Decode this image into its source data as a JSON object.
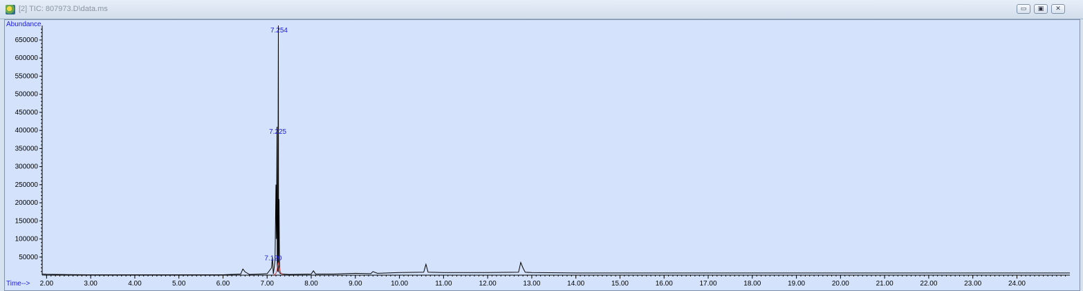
{
  "window": {
    "title": "[2] TIC: 807973.D\\data.ms",
    "icon": "chromatogram-app-icon",
    "buttons": {
      "minimize": "▭",
      "restore": "▣",
      "close": "✕"
    }
  },
  "chart_data": {
    "type": "line",
    "ylabel": "Abundance",
    "xlabel": "Time-->",
    "xlim": [
      1.9,
      25.2
    ],
    "ylim": [
      0,
      690000
    ],
    "y_ticks": [
      50000,
      100000,
      150000,
      200000,
      250000,
      300000,
      350000,
      400000,
      450000,
      500000,
      550000,
      600000,
      650000
    ],
    "x_ticks": [
      "2.00",
      "3.00",
      "4.00",
      "5.00",
      "6.00",
      "7.00",
      "8.00",
      "9.00",
      "10.00",
      "11.00",
      "12.00",
      "13.00",
      "14.00",
      "15.00",
      "16.00",
      "17.00",
      "18.00",
      "19.00",
      "20.00",
      "21.00",
      "22.00",
      "23.00",
      "24.00"
    ],
    "series": [
      {
        "color": "#000000",
        "x": [
          1.9,
          2.0,
          2.5,
          3.0,
          4.0,
          5.0,
          6.0,
          6.4,
          6.45,
          6.5,
          6.6,
          7.0,
          7.1,
          7.12,
          7.14,
          7.18,
          7.2,
          7.21,
          7.225,
          7.23,
          7.24,
          7.254,
          7.26,
          7.27,
          7.28,
          7.29,
          7.35,
          7.5,
          8.0,
          8.05,
          8.1,
          8.5,
          9.0,
          9.35,
          9.4,
          9.5,
          10.0,
          10.55,
          10.6,
          10.65,
          11.0,
          12.0,
          12.7,
          12.75,
          12.8,
          12.85,
          13.0,
          14.0,
          16.0,
          18.0,
          20.0,
          22.0,
          24.0,
          25.2
        ],
        "y": [
          3000,
          2500,
          1500,
          1000,
          1000,
          1000,
          1000,
          3000,
          17000,
          9000,
          2000,
          4000,
          20000,
          50000,
          3000,
          40000,
          250000,
          100000,
          410000,
          30000,
          10000,
          690000,
          8000,
          210000,
          40000,
          5000,
          3000,
          2000,
          3000,
          12000,
          3000,
          3000,
          5000,
          4000,
          10000,
          5000,
          7000,
          8000,
          30000,
          8000,
          7000,
          7000,
          8000,
          35000,
          20000,
          8000,
          7000,
          6000,
          6000,
          6000,
          6000,
          6000,
          6000,
          6000
        ]
      },
      {
        "color": "#e04040",
        "x": [
          7.15,
          7.2,
          7.225,
          7.25,
          7.28,
          7.3,
          7.35
        ],
        "y": [
          0,
          5000,
          15000,
          35000,
          20000,
          8000,
          0
        ]
      }
    ],
    "peak_labels": [
      {
        "text": "7.254",
        "x": 7.254,
        "y": 690000
      },
      {
        "text": "7.225",
        "x": 7.225,
        "y": 410000
      },
      {
        "text": "7.120",
        "x": 7.12,
        "y": 60000
      }
    ]
  }
}
